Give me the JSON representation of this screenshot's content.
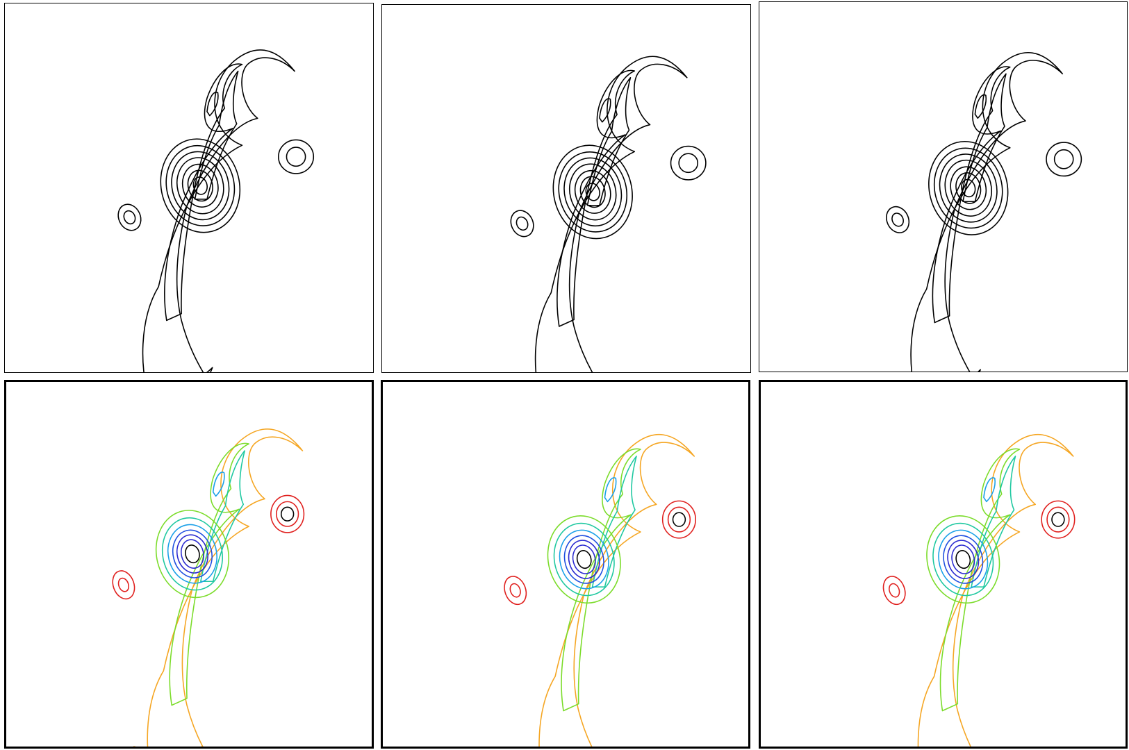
{
  "figure": {
    "rows": [
      {
        "row": "top",
        "style": "monochrome-contours",
        "line_color": "#000000",
        "panels": [
          "panel-1",
          "panel-2",
          "panel-3"
        ]
      },
      {
        "row": "bottom",
        "style": "colored-contours",
        "panels": [
          "panel-4",
          "panel-5",
          "panel-6"
        ]
      }
    ],
    "contour_palette": {
      "outer": "#f5a623",
      "level_2": "#7bdc2a",
      "level_3": "#1ec8a0",
      "level_4": "#1aa0e8",
      "level_5": "#1f4fe0",
      "level_6": "#2a2ad0",
      "core": "#000000",
      "satellite": "#e0201e"
    },
    "features": [
      "spiral-arm",
      "main-vortex",
      "satellite-vortex-right",
      "satellite-vortex-left"
    ]
  }
}
